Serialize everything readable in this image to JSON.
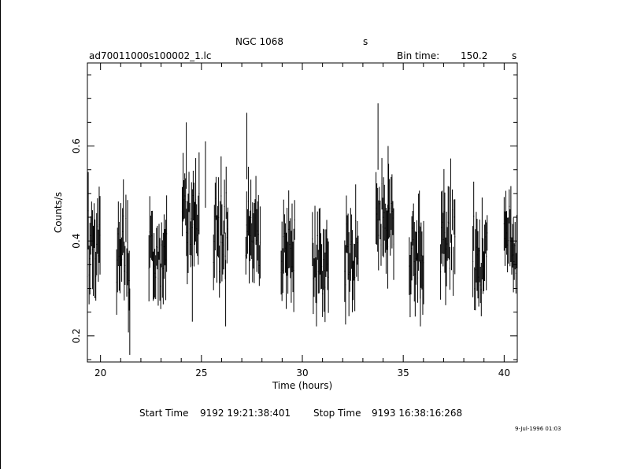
{
  "header": {
    "source": "NGC 1068",
    "source_unit": "s",
    "filename": "ad70011000s100002_1.lc",
    "bin_time_label": "Bin time:",
    "bin_time_value": "150.2",
    "bin_time_unit": "s"
  },
  "footer": {
    "start_label": "Start Time",
    "start_value": "9192 19:21:38:401",
    "stop_label": "Stop Time",
    "stop_value": "9193 16:38:16:268",
    "plot_date": "9-Jul-1996 01:03"
  },
  "chart_data": {
    "type": "scatter",
    "title": "NGC 1068",
    "xlabel": "Time (hours)",
    "ylabel": "Counts/s",
    "xlim": [
      19.35,
      40.65
    ],
    "ylim": [
      0.145,
      0.775
    ],
    "x_ticks": [
      20,
      25,
      30,
      35,
      40
    ],
    "y_ticks": [
      0.2,
      0.4,
      0.6
    ],
    "x_tick_labels": [
      "20",
      "25",
      "30",
      "35",
      "40"
    ],
    "y_tick_labels": [
      "0.2",
      "0.4",
      "0.6"
    ],
    "grid": false,
    "error_bars": "vertical",
    "segments": [
      {
        "start": 19.35,
        "end": 20.0,
        "mean": 0.39
      },
      {
        "start": 20.8,
        "end": 21.45,
        "mean": 0.37
      },
      {
        "start": 22.4,
        "end": 23.3,
        "mean": 0.38
      },
      {
        "start": 24.05,
        "end": 24.9,
        "mean": 0.45
      },
      {
        "start": 25.6,
        "end": 26.35,
        "mean": 0.42
      },
      {
        "start": 27.2,
        "end": 27.95,
        "mean": 0.41
      },
      {
        "start": 28.95,
        "end": 29.65,
        "mean": 0.38
      },
      {
        "start": 30.5,
        "end": 31.3,
        "mean": 0.36
      },
      {
        "start": 32.1,
        "end": 32.8,
        "mean": 0.38
      },
      {
        "start": 33.65,
        "end": 34.55,
        "mean": 0.44
      },
      {
        "start": 35.3,
        "end": 36.05,
        "mean": 0.38
      },
      {
        "start": 36.85,
        "end": 37.6,
        "mean": 0.4
      },
      {
        "start": 38.45,
        "end": 39.2,
        "mean": 0.37
      },
      {
        "start": 40.0,
        "end": 40.65,
        "mean": 0.41
      }
    ],
    "spikes": [
      {
        "x": 21.45,
        "y": 0.16
      },
      {
        "x": 24.25,
        "y": 0.65
      },
      {
        "x": 27.25,
        "y": 0.67
      },
      {
        "x": 33.75,
        "y": 0.69
      },
      {
        "x": 25.2,
        "y": 0.61
      },
      {
        "x": 34.25,
        "y": 0.6
      },
      {
        "x": 24.55,
        "y": 0.23
      },
      {
        "x": 26.2,
        "y": 0.22
      },
      {
        "x": 35.85,
        "y": 0.22
      },
      {
        "x": 30.7,
        "y": 0.22
      }
    ],
    "bin_width_hours": 0.0417
  }
}
